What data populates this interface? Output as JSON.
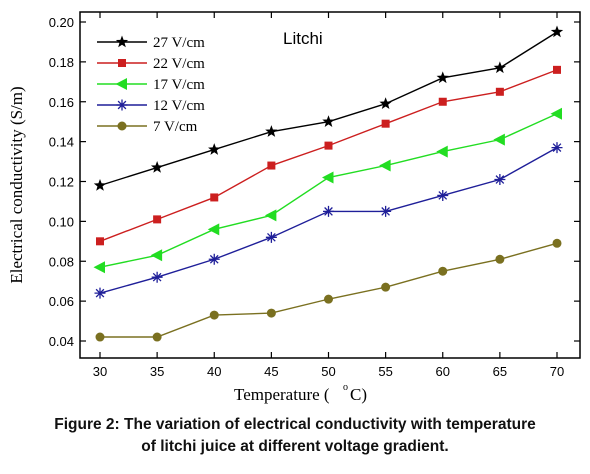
{
  "chart_data": {
    "type": "line",
    "title": "",
    "annotation": "Litchi",
    "xlabel": "Temperature (",
    "xlabel_unit": "C)",
    "xlabel_degree": "o",
    "ylabel": "Electrical conductivity (S/m)",
    "x": [
      30,
      35,
      40,
      45,
      50,
      55,
      60,
      65,
      70
    ],
    "xlim": [
      30,
      70
    ],
    "ylim": [
      0.04,
      0.2
    ],
    "xticks": [
      "30",
      "35",
      "40",
      "45",
      "50",
      "55",
      "60",
      "65",
      "70"
    ],
    "yticks": [
      "0.04",
      "0.06",
      "0.08",
      "0.10",
      "0.12",
      "0.14",
      "0.16",
      "0.18",
      "0.20"
    ],
    "grid": false,
    "legend_position": "top-left",
    "series": [
      {
        "name": "27 V/cm",
        "color": "#000000",
        "marker": "star",
        "values": [
          0.118,
          0.127,
          0.136,
          0.145,
          0.15,
          0.159,
          0.172,
          0.177,
          0.195
        ]
      },
      {
        "name": "22 V/cm",
        "color": "#cc1f1f",
        "marker": "square",
        "values": [
          0.09,
          0.101,
          0.112,
          0.128,
          0.138,
          0.149,
          0.16,
          0.165,
          0.176
        ]
      },
      {
        "name": "17 V/cm",
        "color": "#22dd22",
        "marker": "triangle-left",
        "values": [
          0.077,
          0.083,
          0.096,
          0.103,
          0.122,
          0.128,
          0.135,
          0.141,
          0.154
        ]
      },
      {
        "name": "12 V/cm",
        "color": "#1f1f99",
        "marker": "asterisk",
        "values": [
          0.064,
          0.072,
          0.081,
          0.092,
          0.105,
          0.105,
          0.113,
          0.121,
          0.137
        ]
      },
      {
        "name": "7 V/cm",
        "color": "#7a7020",
        "marker": "circle",
        "values": [
          0.042,
          0.042,
          0.053,
          0.054,
          0.061,
          0.067,
          0.075,
          0.081,
          0.089
        ]
      }
    ]
  },
  "caption": {
    "line1": "Figure 2: The variation of electrical conductivity with temperature",
    "line2": "of litchi juice at different voltage gradient."
  }
}
